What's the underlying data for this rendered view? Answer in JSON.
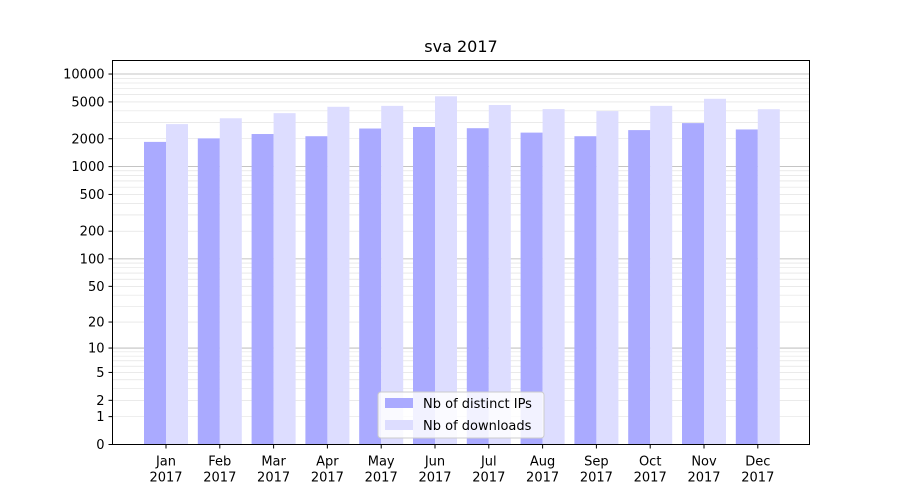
{
  "chart_data": {
    "type": "bar",
    "title": "sva 2017",
    "xlabel": "",
    "ylabel": "",
    "y_scale": "log(1+y) scale",
    "ylim": [
      0,
      14000
    ],
    "y_ticks": [
      0,
      1,
      2,
      5,
      10,
      20,
      50,
      100,
      200,
      500,
      1000,
      2000,
      5000,
      10000
    ],
    "categories": [
      {
        "month": "Jan",
        "year": "2017"
      },
      {
        "month": "Feb",
        "year": "2017"
      },
      {
        "month": "Mar",
        "year": "2017"
      },
      {
        "month": "Apr",
        "year": "2017"
      },
      {
        "month": "May",
        "year": "2017"
      },
      {
        "month": "Jun",
        "year": "2017"
      },
      {
        "month": "Jul",
        "year": "2017"
      },
      {
        "month": "Aug",
        "year": "2017"
      },
      {
        "month": "Sep",
        "year": "2017"
      },
      {
        "month": "Oct",
        "year": "2017"
      },
      {
        "month": "Nov",
        "year": "2017"
      },
      {
        "month": "Dec",
        "year": "2017"
      }
    ],
    "series": [
      {
        "name": "Nb of distinct IPs",
        "color": "#aaaaff",
        "values": [
          1850,
          2020,
          2250,
          2130,
          2580,
          2680,
          2600,
          2330,
          2130,
          2480,
          2950,
          2520
        ]
      },
      {
        "name": "Nb of downloads",
        "color": "#ddddff",
        "values": [
          2880,
          3330,
          3780,
          4430,
          4530,
          5750,
          4630,
          4180,
          3980,
          4530,
          5400,
          4170
        ]
      }
    ],
    "grid": "horizontal major and minor lines",
    "legend_position": "bottom-center"
  }
}
